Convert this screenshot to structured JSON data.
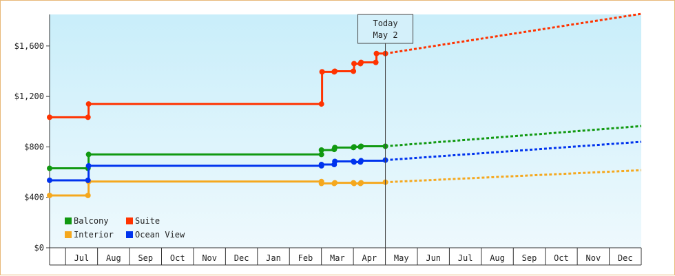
{
  "chart_data": {
    "type": "line",
    "title": "",
    "xlabel": "",
    "ylabel": "",
    "ylim": [
      0,
      1850
    ],
    "yticks": [
      {
        "value": 0,
        "label": "$0"
      },
      {
        "value": 400,
        "label": "$400"
      },
      {
        "value": 800,
        "label": "$800"
      },
      {
        "value": 1200,
        "label": "$1,200"
      },
      {
        "value": 1600,
        "label": "$1,600"
      }
    ],
    "xlim": [
      0,
      18.5
    ],
    "months": [
      {
        "label": "",
        "start": 0.0,
        "end": 0.5
      },
      {
        "label": "Jul",
        "start": 0.5,
        "end": 1.5
      },
      {
        "label": "Aug",
        "start": 1.5,
        "end": 2.5
      },
      {
        "label": "Sep",
        "start": 2.5,
        "end": 3.5
      },
      {
        "label": "Oct",
        "start": 3.5,
        "end": 4.5
      },
      {
        "label": "Nov",
        "start": 4.5,
        "end": 5.5
      },
      {
        "label": "Dec",
        "start": 5.5,
        "end": 6.5
      },
      {
        "label": "Jan",
        "start": 6.5,
        "end": 7.5
      },
      {
        "label": "Feb",
        "start": 7.5,
        "end": 8.5
      },
      {
        "label": "Mar",
        "start": 8.5,
        "end": 9.5
      },
      {
        "label": "Apr",
        "start": 9.5,
        "end": 10.5
      },
      {
        "label": "May",
        "start": 10.5,
        "end": 11.5
      },
      {
        "label": "Jun",
        "start": 11.5,
        "end": 12.5
      },
      {
        "label": "Jul",
        "start": 12.5,
        "end": 13.5
      },
      {
        "label": "Aug",
        "start": 13.5,
        "end": 14.5
      },
      {
        "label": "Sep",
        "start": 14.5,
        "end": 15.5
      },
      {
        "label": "Oct",
        "start": 15.5,
        "end": 16.5
      },
      {
        "label": "Nov",
        "start": 16.5,
        "end": 17.5
      },
      {
        "label": "Dec",
        "start": 17.5,
        "end": 18.5
      }
    ],
    "today": {
      "x": 10.5,
      "label_line1": "Today",
      "label_line2": "May 2"
    },
    "legend_placement": "bottom-left",
    "grid": false,
    "series": [
      {
        "name": "Balcony",
        "color": "#119911",
        "points": [
          [
            0,
            630
          ],
          [
            1.2,
            630
          ],
          [
            1.22,
            740
          ],
          [
            8.5,
            740
          ],
          [
            8.5,
            775
          ],
          [
            8.9,
            780
          ],
          [
            8.92,
            795
          ],
          [
            9.5,
            795
          ],
          [
            9.52,
            800
          ],
          [
            9.72,
            800
          ],
          [
            9.74,
            805
          ],
          [
            10.5,
            805
          ]
        ],
        "forecast": [
          [
            10.5,
            805
          ],
          [
            18.5,
            965
          ]
        ]
      },
      {
        "name": "Suite",
        "color": "#ff3300",
        "points": [
          [
            0,
            1035
          ],
          [
            1.2,
            1035
          ],
          [
            1.22,
            1140
          ],
          [
            8.5,
            1140
          ],
          [
            8.52,
            1395
          ],
          [
            8.9,
            1395
          ],
          [
            8.92,
            1400
          ],
          [
            9.5,
            1400
          ],
          [
            9.52,
            1460
          ],
          [
            9.72,
            1460
          ],
          [
            9.74,
            1470
          ],
          [
            10.2,
            1470
          ],
          [
            10.22,
            1540
          ],
          [
            10.5,
            1540
          ]
        ],
        "forecast": [
          [
            10.5,
            1540
          ],
          [
            18.5,
            1855
          ]
        ]
      },
      {
        "name": "Interior",
        "color": "#f5a81e",
        "points": [
          [
            0,
            415
          ],
          [
            1.2,
            415
          ],
          [
            1.22,
            525
          ],
          [
            8.5,
            525
          ],
          [
            8.5,
            510
          ],
          [
            8.9,
            510
          ],
          [
            8.92,
            515
          ],
          [
            9.5,
            515
          ],
          [
            9.52,
            510
          ],
          [
            9.72,
            510
          ],
          [
            9.74,
            515
          ],
          [
            10.5,
            520
          ]
        ],
        "forecast": [
          [
            10.5,
            520
          ],
          [
            18.5,
            615
          ]
        ]
      },
      {
        "name": "Ocean View",
        "color": "#0033ee",
        "points": [
          [
            0,
            535
          ],
          [
            1.2,
            535
          ],
          [
            1.22,
            650
          ],
          [
            8.5,
            650
          ],
          [
            8.5,
            660
          ],
          [
            8.9,
            660
          ],
          [
            8.92,
            685
          ],
          [
            9.5,
            685
          ],
          [
            9.52,
            680
          ],
          [
            9.72,
            680
          ],
          [
            9.74,
            690
          ],
          [
            10.5,
            695
          ]
        ],
        "forecast": [
          [
            10.5,
            695
          ],
          [
            18.5,
            840
          ]
        ]
      }
    ],
    "legend": [
      {
        "label": "Balcony",
        "color": "#119911"
      },
      {
        "label": "Suite",
        "color": "#ff3300"
      },
      {
        "label": "Interior",
        "color": "#f5a81e"
      },
      {
        "label": "Ocean View",
        "color": "#0033ee"
      }
    ]
  }
}
